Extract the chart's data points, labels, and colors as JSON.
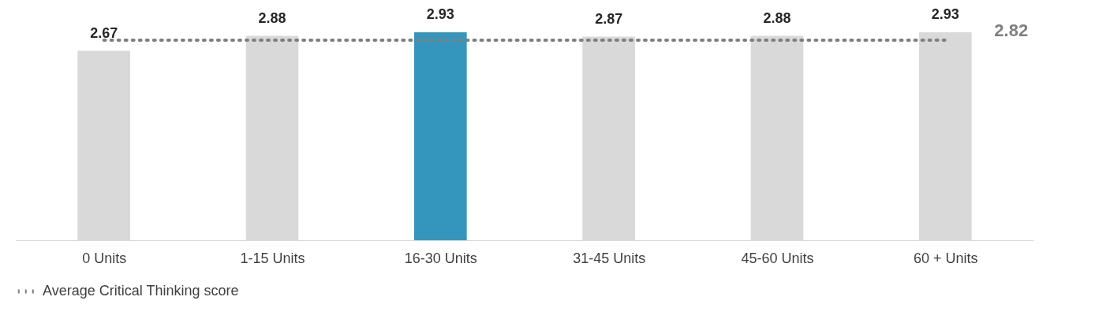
{
  "chart_data": {
    "type": "bar",
    "categories": [
      "0 Units",
      "1-15 Units",
      "16-30 Units",
      "31-45 Units",
      "45-60 Units",
      "60 + Units"
    ],
    "series": [
      {
        "colors": [
          "#d9d9d9",
          "#d9d9d9",
          "#3596bd",
          "#d9d9d9",
          "#d9d9d9",
          "#d9d9d9"
        ],
        "values": [
          2.67,
          2.88,
          2.93,
          2.87,
          2.88,
          2.93
        ],
        "value_labels": [
          "2.67",
          "2.88",
          "2.93",
          "2.87",
          "2.88",
          "2.93"
        ]
      },
      {
        "type": "line",
        "name": "Average Critical Thinking score",
        "color": "#7f7f7f",
        "line_style": "dotted",
        "values": [
          2.82,
          2.82,
          2.82,
          2.82,
          2.82,
          2.82
        ]
      }
    ],
    "legend": "bottom",
    "grid": false,
    "annotations": [
      {
        "text": "2.82",
        "x": "60 + Units",
        "y": 2.82
      }
    ]
  }
}
